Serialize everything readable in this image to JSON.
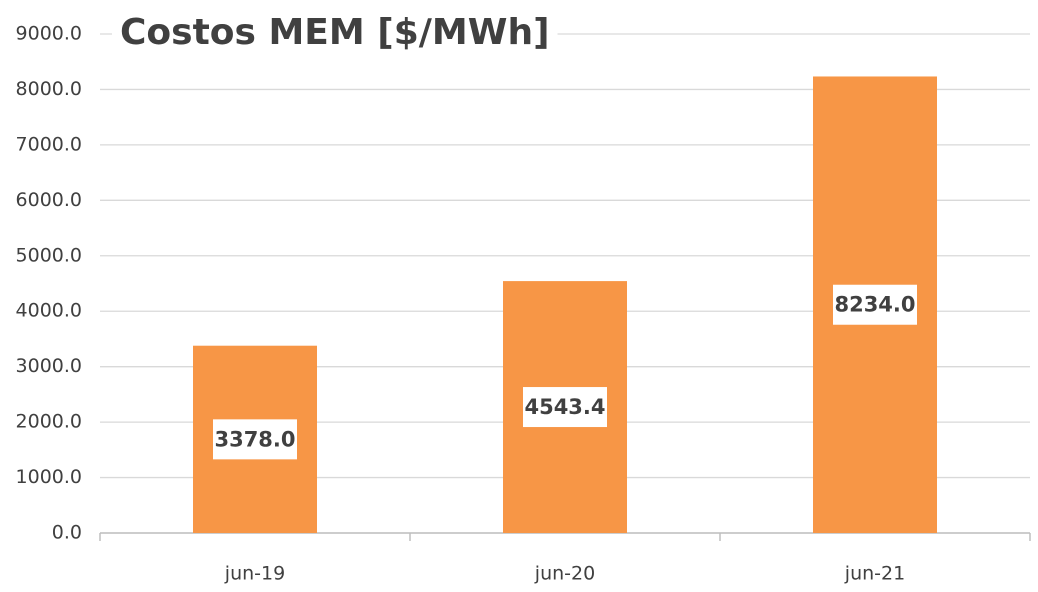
{
  "chart_data": {
    "type": "bar",
    "title": "Costos MEM [$/MWh]",
    "categories": [
      "jun-19",
      "jun-20",
      "jun-21"
    ],
    "values": [
      3378,
      4543.4,
      8234
    ],
    "value_labels": [
      "3378.0",
      "4543.4",
      "8234.0"
    ],
    "color": "#f79646",
    "ylim": [
      0,
      9000
    ],
    "yticks": [
      {
        "value": 0,
        "label": "0.0"
      },
      {
        "value": 1000,
        "label": "1000.0"
      },
      {
        "value": 2000,
        "label": "2000.0"
      },
      {
        "value": 3000,
        "label": "3000.0"
      },
      {
        "value": 4000,
        "label": "4000.0"
      },
      {
        "value": 5000,
        "label": "5000.0"
      },
      {
        "value": 6000,
        "label": "6000.0"
      },
      {
        "value": 7000,
        "label": "7000.0"
      },
      {
        "value": 8000,
        "label": "8000.0"
      },
      {
        "value": 9000,
        "label": "9000.0"
      }
    ],
    "grid": true
  }
}
